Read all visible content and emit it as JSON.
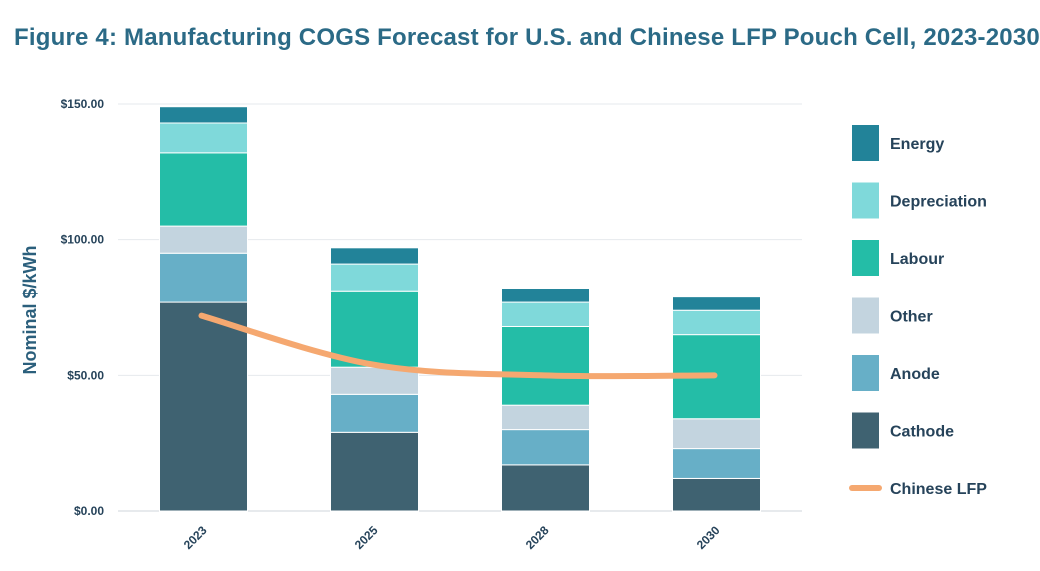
{
  "chart_data": {
    "type": "bar",
    "stacked": true,
    "title": "Figure 4: Manufacturing COGS Forecast for U.S. and Chinese LFP Pouch Cell, 2023-2030",
    "xlabel": "",
    "ylabel": "Nominal $/kWh",
    "ylim": [
      0,
      150
    ],
    "yticks": [
      0,
      50,
      100,
      150
    ],
    "ytick_labels": [
      "$0.00",
      "$50.00",
      "$100.00",
      "$150.00"
    ],
    "categories": [
      "2023",
      "2025",
      "2028",
      "2030"
    ],
    "grid": true,
    "legend_position": "right",
    "series": [
      {
        "name": "Cathode",
        "color": "#3f6271",
        "values": [
          77,
          29,
          17,
          12
        ]
      },
      {
        "name": "Anode",
        "color": "#67afc7",
        "values": [
          18,
          14,
          13,
          11
        ]
      },
      {
        "name": "Other",
        "color": "#c3d4df",
        "values": [
          10,
          10,
          9,
          11
        ]
      },
      {
        "name": "Labour",
        "color": "#24bda7",
        "values": [
          27,
          28,
          29,
          31
        ]
      },
      {
        "name": "Depreciation",
        "color": "#7fd9da",
        "values": [
          11,
          10,
          9,
          9
        ]
      },
      {
        "name": "Energy",
        "color": "#228399",
        "values": [
          6,
          6,
          5,
          5
        ]
      }
    ],
    "line_series": {
      "name": "Chinese LFP",
      "color": "#f5a870",
      "values": [
        72,
        54,
        50,
        50
      ]
    },
    "legend_order": [
      "Energy",
      "Depreciation",
      "Labour",
      "Other",
      "Anode",
      "Cathode",
      "Chinese LFP"
    ]
  }
}
